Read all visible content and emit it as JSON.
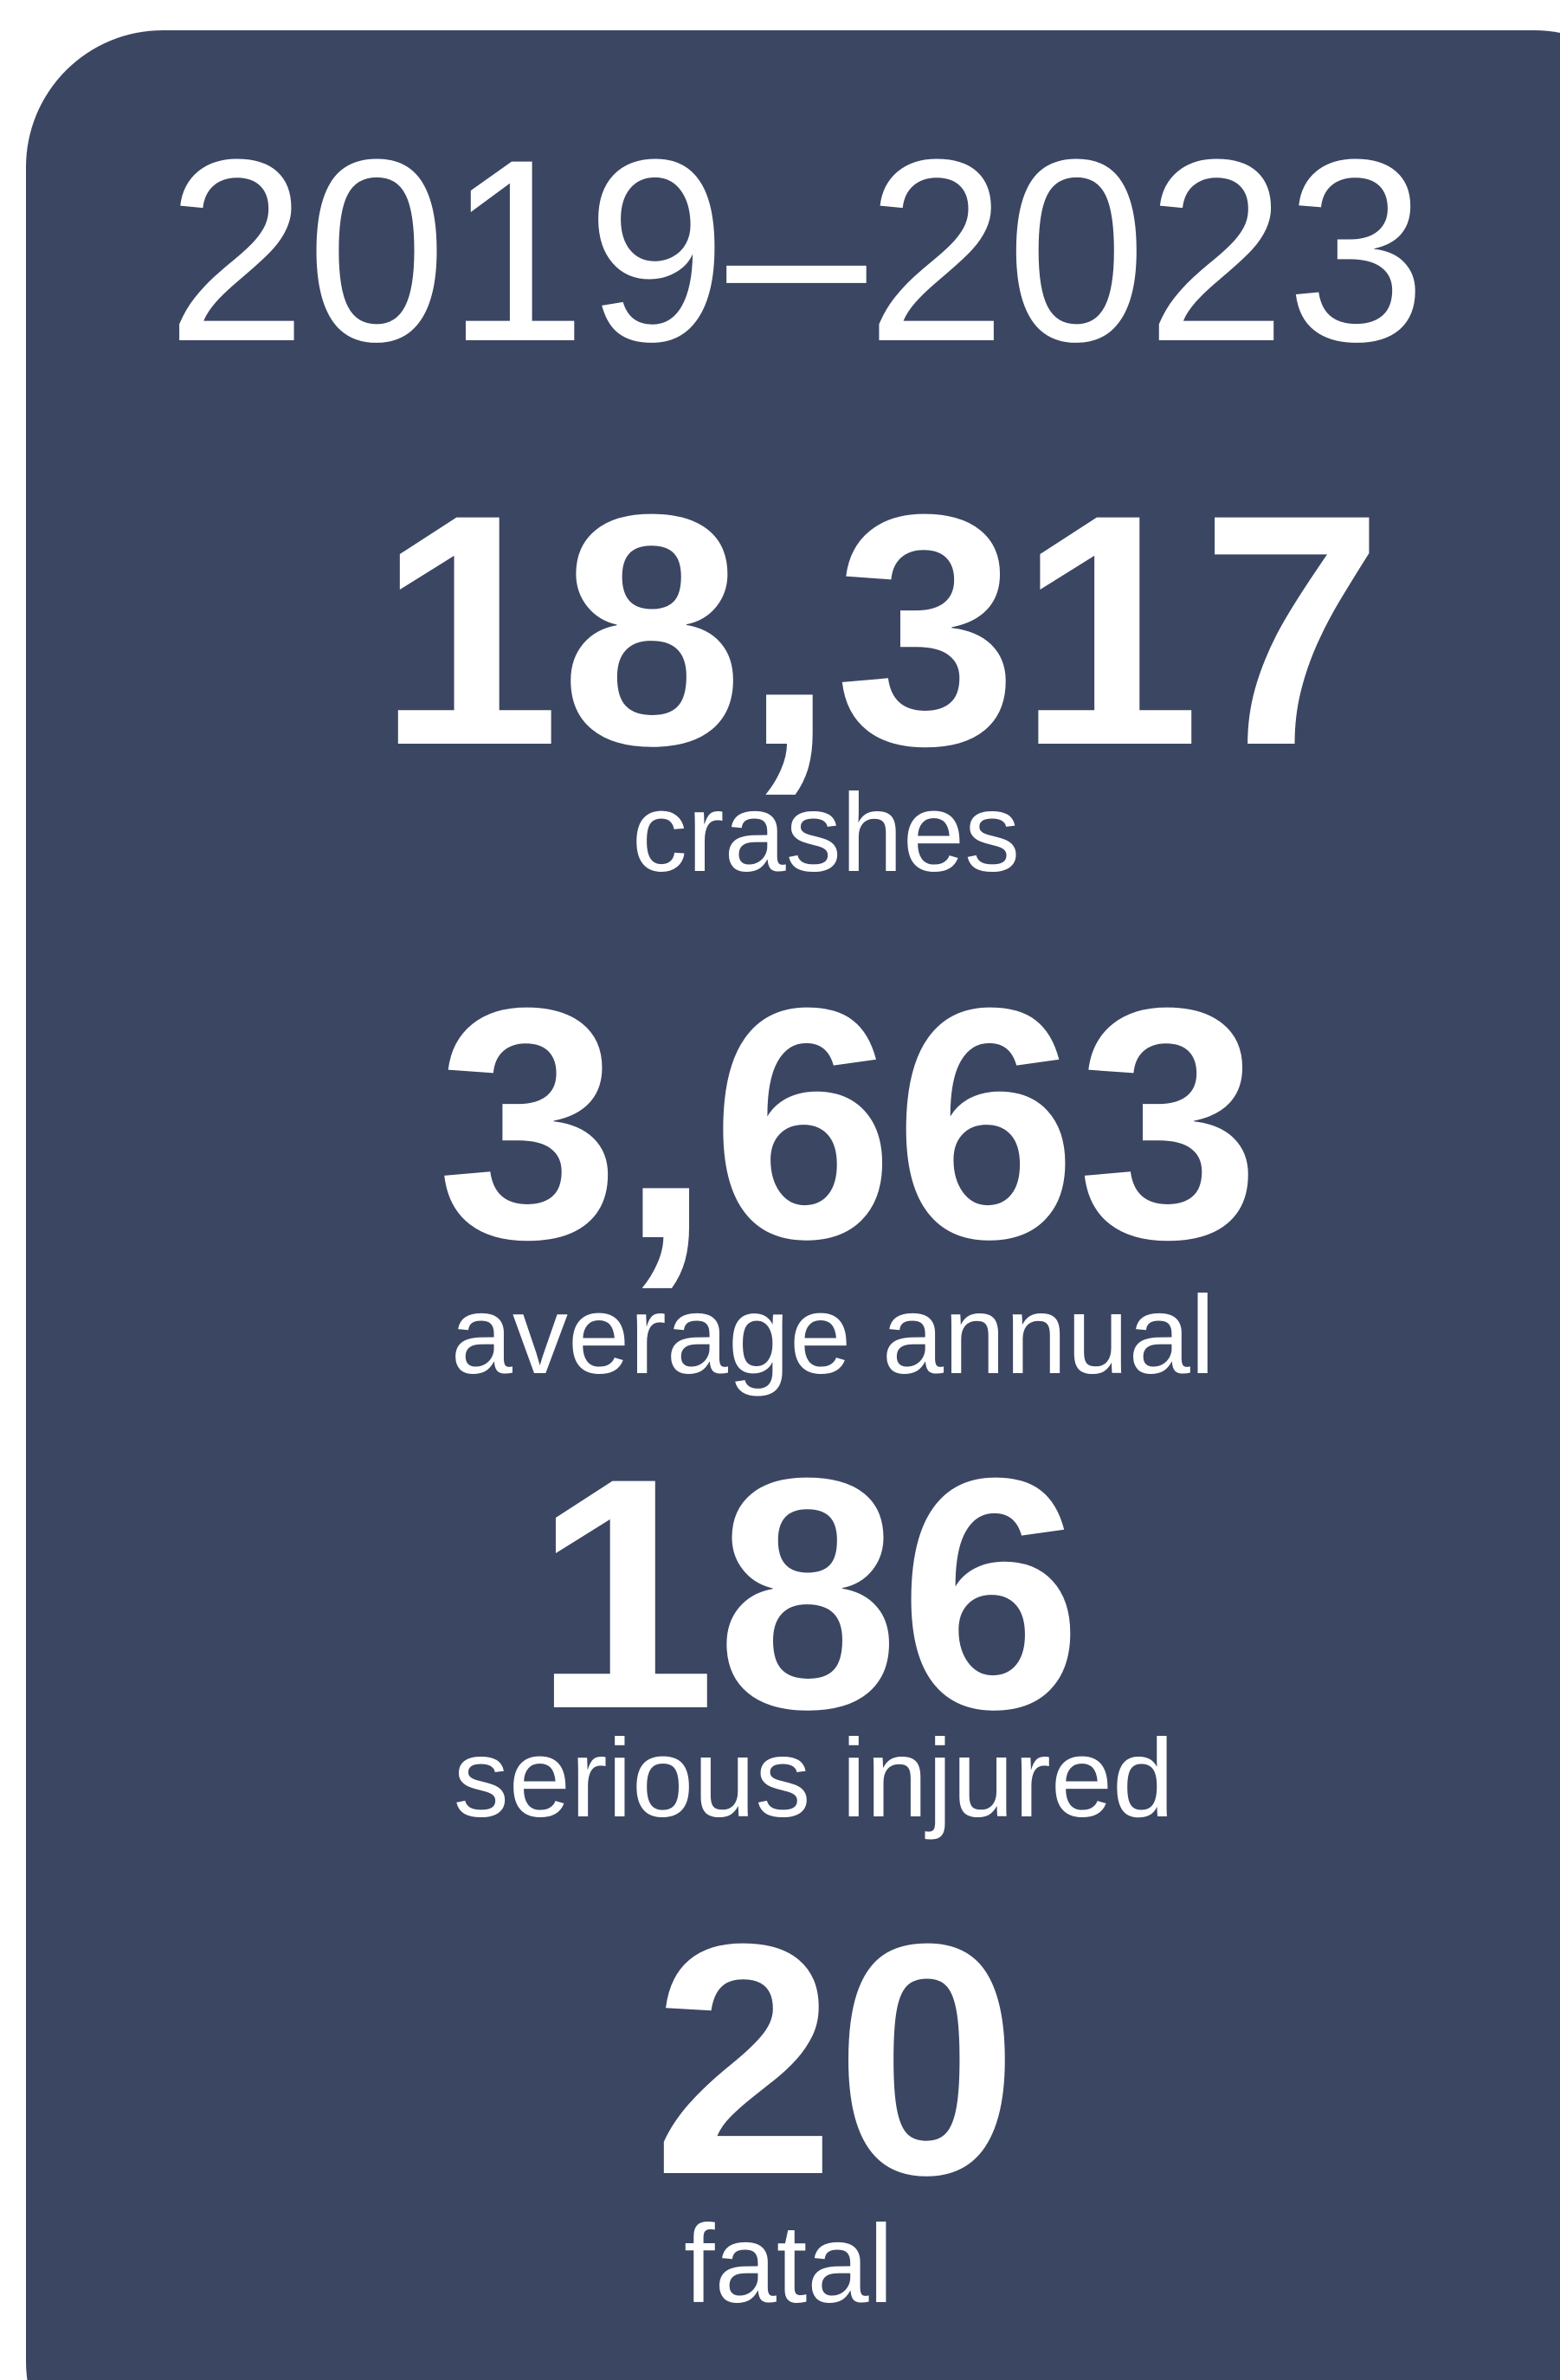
{
  "header": {
    "title": "2019–2023"
  },
  "stats": [
    {
      "value": "18,317",
      "label": "crashes"
    },
    {
      "value": "3,663",
      "label": "average annual"
    },
    {
      "value": "186",
      "label": "serious injured"
    },
    {
      "value": "20",
      "label": "fatal"
    }
  ]
}
